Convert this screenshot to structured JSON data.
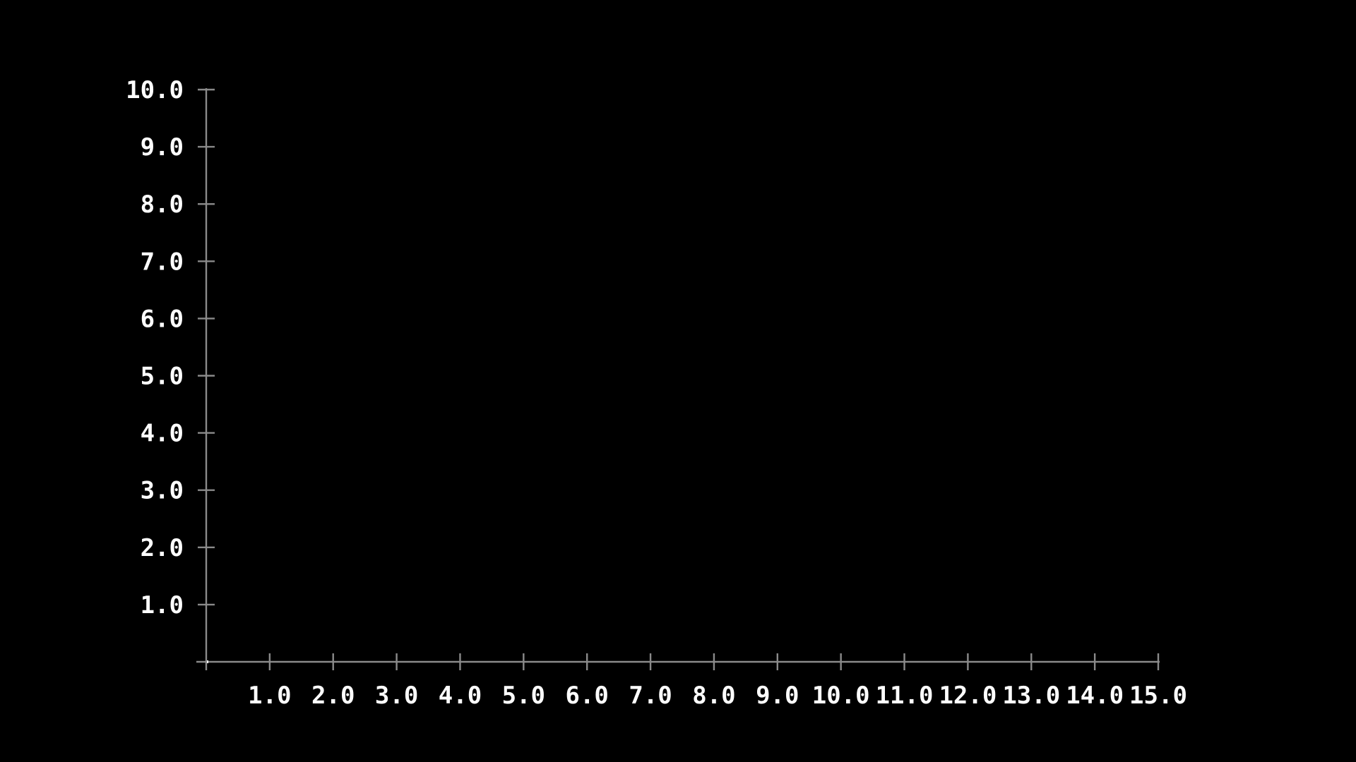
{
  "chart_data": {
    "type": "scatter",
    "title": "",
    "xlabel": "",
    "ylabel": "",
    "xlim": [
      0,
      15
    ],
    "ylim": [
      0,
      10
    ],
    "x_tick_labels": [
      "1.0",
      "2.0",
      "3.0",
      "4.0",
      "5.0",
      "6.0",
      "7.0",
      "8.0",
      "9.0",
      "10.0",
      "11.0",
      "12.0",
      "13.0",
      "14.0",
      "15.0"
    ],
    "y_tick_labels": [
      "1.0",
      "2.0",
      "3.0",
      "4.0",
      "5.0",
      "6.0",
      "7.0",
      "8.0",
      "9.0",
      "10.0"
    ],
    "series": [],
    "grid": false,
    "colors": {
      "background": "#000000",
      "axis": "#8a8a8a",
      "text": "#ffffff"
    }
  }
}
